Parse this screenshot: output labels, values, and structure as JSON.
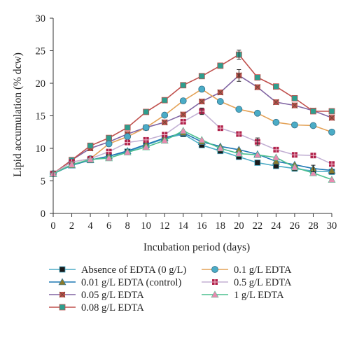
{
  "chart_data": {
    "type": "line",
    "xlabel": "Incubation period (days)",
    "ylabel": "Lipid accumulation (% dcw)",
    "xlim": [
      0,
      30
    ],
    "ylim": [
      0,
      30
    ],
    "xticks": [
      "0",
      "2",
      "4",
      "6",
      "8",
      "10",
      "12",
      "14",
      "16",
      "18",
      "20",
      "22",
      "24",
      "26",
      "28",
      "30"
    ],
    "yticks": [
      "0",
      "5",
      "10",
      "15",
      "20",
      "25",
      "30"
    ],
    "grid": false,
    "legend_position": "bottom",
    "series": [
      {
        "name": "Absence of EDTA (0 g/L)",
        "line_color": "#4bacc6",
        "marker": "square",
        "marker_color": "#1a1a1a",
        "x": [
          0,
          2,
          4,
          6,
          8,
          10,
          12,
          14,
          16,
          18,
          20,
          22,
          24,
          26,
          28,
          30
        ],
        "y": [
          6.1,
          7.5,
          8.2,
          8.8,
          9.5,
          10.5,
          11.5,
          12.2,
          10.5,
          9.6,
          8.7,
          7.8,
          7.3,
          6.9,
          6.5,
          6.4
        ]
      },
      {
        "name": "0.01 g/L EDTA (control)",
        "line_color": "#1f78b4",
        "marker": "triangle",
        "marker_color": "#8a7a2c",
        "x": [
          0,
          2,
          4,
          6,
          8,
          10,
          12,
          14,
          16,
          18,
          20,
          22,
          24,
          26,
          28,
          30
        ],
        "y": [
          6.1,
          7.4,
          8.2,
          8.8,
          9.6,
          10.6,
          11.6,
          12.4,
          11.0,
          10.3,
          9.8,
          9.1,
          8.0,
          7.5,
          6.9,
          6.6
        ]
      },
      {
        "name": "0.05 g/L EDTA",
        "line_color": "#8064a2",
        "marker": "x-square",
        "marker_color": "#c0504d",
        "x": [
          0,
          2,
          4,
          6,
          8,
          10,
          12,
          14,
          16,
          18,
          20,
          22,
          24,
          26,
          28,
          30
        ],
        "y": [
          6.1,
          8.2,
          10.0,
          11.0,
          12.2,
          13.2,
          14.0,
          15.2,
          17.2,
          18.6,
          21.2,
          19.4,
          17.1,
          16.6,
          15.8,
          14.7
        ]
      },
      {
        "name": "0.08 g/L EDTA",
        "line_color": "#c0504d",
        "marker": "square",
        "marker_color": "#2e9e8e",
        "x": [
          0,
          2,
          4,
          6,
          8,
          10,
          12,
          14,
          16,
          18,
          20,
          22,
          24,
          26,
          28,
          30
        ],
        "y": [
          6.1,
          8.2,
          10.4,
          11.6,
          13.2,
          15.6,
          17.4,
          19.7,
          21.1,
          22.7,
          24.4,
          20.9,
          19.5,
          17.7,
          15.7,
          15.7
        ]
      },
      {
        "name": "0.1 g/L EDTA",
        "line_color": "#e4a257",
        "marker": "circle",
        "marker_color": "#4bacc6",
        "x": [
          0,
          2,
          4,
          6,
          8,
          10,
          12,
          14,
          16,
          18,
          20,
          22,
          24,
          26,
          28,
          30
        ],
        "y": [
          6.1,
          7.9,
          8.4,
          10.7,
          11.8,
          13.2,
          15.1,
          17.3,
          19.1,
          17.2,
          16.0,
          15.4,
          14.0,
          13.6,
          13.5,
          12.5
        ]
      },
      {
        "name": "0.5 g/L EDTA",
        "line_color": "#c3b1d4",
        "marker": "grid-square",
        "marker_color": "#b0224a",
        "x": [
          0,
          2,
          4,
          6,
          8,
          10,
          12,
          14,
          16,
          18,
          20,
          22,
          24,
          26,
          28,
          30
        ],
        "y": [
          6.1,
          7.9,
          8.4,
          9.5,
          10.9,
          11.3,
          12.1,
          14.1,
          15.7,
          13.1,
          12.2,
          11.0,
          9.8,
          9.0,
          8.9,
          7.6
        ]
      },
      {
        "name": "1 g/L EDTA",
        "line_color": "#4bbf8f",
        "marker": "triangle",
        "marker_color": "#e88ab0",
        "x": [
          0,
          2,
          4,
          6,
          8,
          10,
          12,
          14,
          16,
          18,
          20,
          22,
          24,
          26,
          28,
          30
        ],
        "y": [
          6.1,
          7.5,
          8.3,
          8.5,
          9.4,
          10.2,
          11.2,
          12.7,
          11.3,
          10.0,
          9.2,
          9.0,
          8.6,
          7.1,
          6.2,
          5.2
        ]
      }
    ]
  }
}
